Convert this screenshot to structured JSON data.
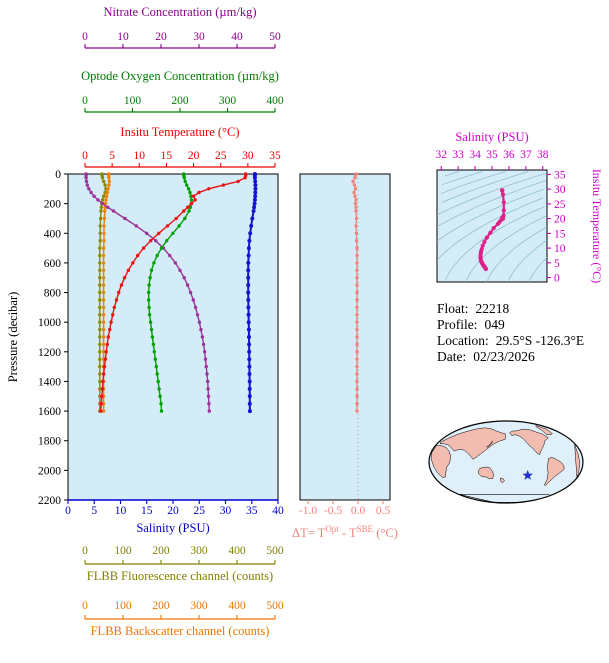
{
  "info": {
    "lines": [
      {
        "label": "Float:",
        "value": "22218"
      },
      {
        "label": "Profile:",
        "value": "049"
      },
      {
        "label": "Location:",
        "value": "29.5°S -126.3°E"
      },
      {
        "label": "Date:",
        "value": "02/23/2026"
      }
    ]
  },
  "chart_data": [
    {
      "id": "profile-plot",
      "type": "line",
      "background": "#d3ecf8",
      "y_axis": {
        "label": "Pressure (decibar)",
        "min": 0,
        "max": 2200,
        "ticks": [
          0,
          200,
          400,
          600,
          800,
          1000,
          1200,
          1400,
          1600,
          1800,
          2000,
          2200
        ]
      },
      "axes": [
        {
          "id": "nitrate",
          "title": "Nitrate Concentration (µm/kg)",
          "color": "#8b008b",
          "min": 0,
          "max": 50,
          "ticks": [
            0,
            10,
            20,
            30,
            40,
            50
          ],
          "position": "top-outer"
        },
        {
          "id": "oxygen",
          "title": "Optode Oxygen Concentration (µm/kg)",
          "color": "#007a00",
          "min": 0,
          "max": 400,
          "ticks": [
            0,
            100,
            200,
            300,
            400
          ],
          "position": "top-middle"
        },
        {
          "id": "temperature",
          "title": "Insitu Temperature (°C)",
          "color": "#ee0000",
          "min": 0,
          "max": 35,
          "ticks": [
            0,
            5,
            10,
            15,
            20,
            25,
            30,
            35
          ],
          "position": "top-inner"
        },
        {
          "id": "salinity",
          "title": "Salinity (PSU)",
          "color": "#0000cc",
          "min": 0,
          "max": 40,
          "ticks": [
            0,
            5,
            10,
            15,
            20,
            25,
            30,
            35,
            40
          ],
          "position": "bottom"
        },
        {
          "id": "fluorescence",
          "title": "FLBB Fluorescence channel (counts)",
          "color": "#808000",
          "min": 0,
          "max": 500,
          "ticks": [
            0,
            100,
            200,
            300,
            400,
            500
          ],
          "position": "below-1"
        },
        {
          "id": "backscatter",
          "title": "FLBB Backscatter channel (counts)",
          "color": "#ee7600",
          "min": 0,
          "max": 500,
          "ticks": [
            0,
            100,
            200,
            300,
            400,
            500
          ],
          "position": "below-2"
        }
      ],
      "pressure_db": [
        0,
        10,
        25,
        50,
        75,
        100,
        125,
        150,
        175,
        200,
        225,
        250,
        300,
        350,
        400,
        450,
        500,
        550,
        600,
        650,
        700,
        750,
        800,
        850,
        900,
        950,
        1000,
        1050,
        1100,
        1150,
        1200,
        1250,
        1300,
        1350,
        1400,
        1450,
        1500,
        1550,
        1600
      ],
      "series": [
        {
          "id": "fluorescence",
          "axis": "fluorescence",
          "color": "#8a8a00",
          "values": [
            45,
            45,
            46,
            49,
            53,
            55,
            53,
            49,
            46,
            44,
            43,
            42,
            41,
            40,
            40,
            40,
            39,
            39,
            39,
            39,
            39,
            39,
            39,
            39,
            39,
            39,
            39,
            39,
            39,
            39,
            39,
            39,
            39,
            39,
            39,
            39,
            39,
            39,
            39
          ]
        },
        {
          "id": "backscatter",
          "axis": "backscatter",
          "color": "#f08000",
          "values": [
            62,
            62,
            63,
            64,
            63,
            61,
            59,
            57,
            55,
            54,
            53,
            52,
            51,
            50,
            50,
            50,
            49,
            49,
            49,
            49,
            49,
            49,
            49,
            49,
            49,
            49,
            49,
            49,
            49,
            49,
            49,
            49,
            49,
            49,
            49,
            49,
            49,
            49,
            49
          ]
        },
        {
          "id": "nitrate",
          "axis": "nitrate",
          "color": "#993399",
          "values": [
            0.3,
            0.3,
            0.3,
            0.4,
            0.6,
            1.0,
            1.6,
            2.4,
            3.4,
            4.6,
            6.0,
            7.5,
            10.5,
            13.5,
            16.2,
            18.6,
            20.6,
            22.3,
            23.8,
            25.0,
            26.1,
            27.0,
            27.8,
            28.5,
            29.1,
            29.6,
            30.1,
            30.5,
            30.9,
            31.2,
            31.5,
            31.7,
            31.9,
            32.1,
            32.3,
            32.4,
            32.5,
            32.6,
            32.7
          ]
        },
        {
          "id": "oxygen",
          "axis": "oxygen",
          "color": "#00a000",
          "values": [
            208,
            208,
            209,
            211,
            214,
            218,
            221,
            223,
            224,
            224,
            222,
            219,
            210,
            198,
            185,
            172,
            161,
            152,
            145,
            140,
            137,
            135,
            134,
            134,
            135,
            136,
            138,
            140,
            142,
            144,
            146,
            148,
            150,
            152,
            154,
            156,
            158,
            160,
            161
          ]
        },
        {
          "id": "temperature",
          "axis": "temperature",
          "color": "#ee1111",
          "values": [
            29.6,
            29.6,
            29.5,
            28.2,
            25.5,
            22.8,
            21.0,
            20.0,
            20.3,
            19.6,
            18.9,
            18.2,
            16.8,
            15.2,
            13.6,
            12.1,
            10.8,
            9.7,
            8.8,
            8.0,
            7.3,
            6.7,
            6.2,
            5.8,
            5.4,
            5.1,
            4.8,
            4.55,
            4.3,
            4.1,
            3.9,
            3.75,
            3.6,
            3.45,
            3.3,
            3.2,
            3.1,
            3.0,
            2.9
          ]
        },
        {
          "id": "salinity",
          "axis": "salinity",
          "color": "#1515cc",
          "values": [
            35.6,
            35.6,
            35.6,
            35.65,
            35.7,
            35.7,
            35.68,
            35.65,
            35.6,
            35.55,
            35.45,
            35.35,
            35.1,
            34.9,
            34.7,
            34.55,
            34.45,
            34.4,
            34.35,
            34.33,
            34.32,
            34.32,
            34.33,
            34.35,
            34.37,
            34.4,
            34.42,
            34.45,
            34.47,
            34.5,
            34.52,
            34.54,
            34.56,
            34.58,
            34.6,
            34.61,
            34.62,
            34.63,
            34.64
          ]
        }
      ]
    },
    {
      "id": "delta-plot",
      "type": "line",
      "background": "#d3ecf8",
      "color": "#f2837b",
      "x_axis": {
        "min": -1.16,
        "max": 0.64,
        "tick_values": [
          -1.0,
          -0.5,
          0.0,
          0.5
        ],
        "tick_labels": [
          "-1.0",
          "-0.5",
          "0.0",
          "0.5"
        ]
      },
      "title_parts": {
        "main1": "ΔT= T",
        "sup1": "Opt",
        "main2": " - T",
        "sup2": "SBE",
        "main3": " (°C)"
      },
      "pressure_db": [
        0,
        10,
        25,
        50,
        75,
        100,
        125,
        150,
        175,
        200,
        225,
        250,
        300,
        350,
        400,
        450,
        500,
        550,
        600,
        650,
        700,
        750,
        800,
        850,
        900,
        950,
        1000,
        1050,
        1100,
        1150,
        1200,
        1250,
        1300,
        1350,
        1400,
        1450,
        1500,
        1550,
        1600
      ],
      "series": {
        "id": "delta_t",
        "values": [
          -0.04,
          -0.05,
          -0.06,
          -0.1,
          -0.07,
          -0.05,
          -0.08,
          -0.06,
          -0.04,
          -0.05,
          -0.04,
          -0.04,
          -0.03,
          -0.04,
          -0.03,
          -0.03,
          -0.02,
          -0.02,
          -0.02,
          -0.02,
          -0.02,
          -0.02,
          -0.02,
          -0.02,
          -0.02,
          -0.02,
          -0.02,
          -0.02,
          -0.02,
          -0.02,
          -0.02,
          -0.02,
          -0.02,
          -0.02,
          -0.02,
          -0.02,
          -0.02,
          -0.02,
          -0.02
        ]
      }
    },
    {
      "id": "ts-plot",
      "type": "scatter",
      "background": "#d3ecf8",
      "x_axis": {
        "label": "Salinity (PSU)",
        "min": 31.75,
        "max": 38.25,
        "ticks": [
          32,
          33,
          34,
          35,
          36,
          37,
          38
        ],
        "color": "#cc00cc"
      },
      "y_axis": {
        "label": "Insitu Temperature (°C)",
        "min": -1.5,
        "max": 36.5,
        "ticks": [
          0,
          5,
          10,
          15,
          20,
          25,
          30,
          35
        ],
        "color": "#cc00cc"
      },
      "curve_color": "#e0218a",
      "contours": {
        "levels": [
          18,
          19,
          20,
          21,
          22,
          23,
          24,
          25,
          26,
          27,
          28,
          29,
          30,
          31
        ],
        "color": "#8ab8c6"
      },
      "points_from": {
        "x": "salinity",
        "y": "temperature"
      }
    }
  ],
  "map": {
    "marker": {
      "lon": -126.3,
      "lat": -29.5
    },
    "marker_color": "#2233cc",
    "land_color": "#f3bcb1",
    "ocean_color": "#dff0fa",
    "outline_color": "#000000"
  }
}
